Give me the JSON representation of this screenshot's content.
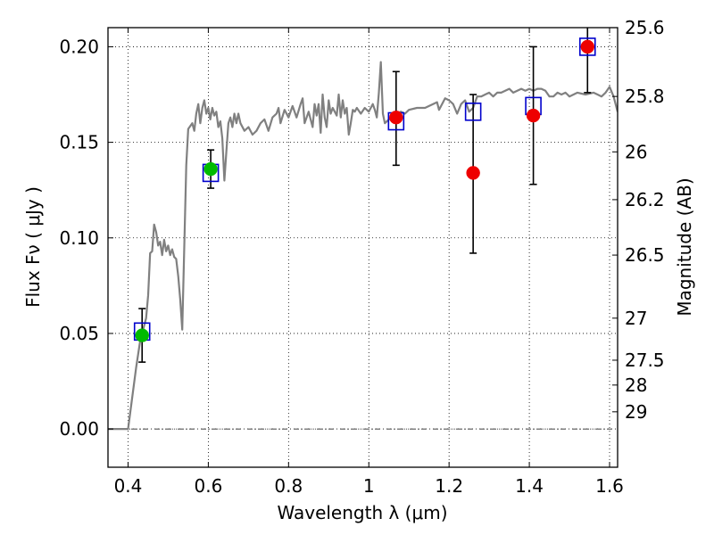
{
  "chart_data": {
    "type": "scatter",
    "xlabel": "Wavelength  λ (μm)",
    "ylabel": "Flux  Fν  ( μJy )",
    "ylabel_right": "Magnitude (AB)",
    "xlim": [
      0.35,
      1.62
    ],
    "ylim": [
      -0.02,
      0.21
    ],
    "x_ticks": [
      0.4,
      0.6,
      0.8,
      1.0,
      1.2,
      1.4,
      1.6
    ],
    "x_tick_labels": [
      "0.4",
      "0.6",
      "0.8",
      "1",
      "1.2",
      "1.4",
      "1.6"
    ],
    "y_ticks": [
      0.0,
      0.05,
      0.1,
      0.15,
      0.2
    ],
    "y_tick_labels": [
      "0.00",
      "0.05",
      "0.10",
      "0.15",
      "0.20"
    ],
    "right_ticks": [
      {
        "label": "25.6",
        "flux": 0.21
      },
      {
        "label": "25.8",
        "flux": 0.174
      },
      {
        "label": "26",
        "flux": 0.145
      },
      {
        "label": "26.2",
        "flux": 0.12
      },
      {
        "label": "26.5",
        "flux": 0.091
      },
      {
        "label": "27",
        "flux": 0.058
      },
      {
        "label": "27.5",
        "flux": 0.036
      },
      {
        "label": "28",
        "flux": 0.023
      },
      {
        "label": "29",
        "flux": 0.009
      }
    ],
    "grid": true,
    "colors": {
      "model": "#808080",
      "box": "#0000cc",
      "green": "#00bb00",
      "red": "#ee0000",
      "errorbar": "#000000"
    },
    "series": [
      {
        "kind": "line",
        "points": [
          [
            0.35,
            0.0
          ],
          [
            0.4,
            0.0
          ],
          [
            0.41,
            0.016
          ],
          [
            0.42,
            0.032
          ],
          [
            0.43,
            0.046
          ],
          [
            0.44,
            0.054
          ],
          [
            0.445,
            0.058
          ],
          [
            0.45,
            0.07
          ],
          [
            0.455,
            0.092
          ],
          [
            0.46,
            0.093
          ],
          [
            0.465,
            0.107
          ],
          [
            0.47,
            0.103
          ],
          [
            0.475,
            0.096
          ],
          [
            0.48,
            0.098
          ],
          [
            0.485,
            0.091
          ],
          [
            0.49,
            0.099
          ],
          [
            0.495,
            0.093
          ],
          [
            0.5,
            0.096
          ],
          [
            0.505,
            0.091
          ],
          [
            0.51,
            0.094
          ],
          [
            0.515,
            0.09
          ],
          [
            0.52,
            0.089
          ],
          [
            0.525,
            0.08
          ],
          [
            0.53,
            0.068
          ],
          [
            0.535,
            0.052
          ],
          [
            0.54,
            0.094
          ],
          [
            0.545,
            0.138
          ],
          [
            0.55,
            0.157
          ],
          [
            0.56,
            0.16
          ],
          [
            0.565,
            0.156
          ],
          [
            0.57,
            0.165
          ],
          [
            0.575,
            0.17
          ],
          [
            0.58,
            0.16
          ],
          [
            0.585,
            0.168
          ],
          [
            0.59,
            0.172
          ],
          [
            0.595,
            0.165
          ],
          [
            0.6,
            0.168
          ],
          [
            0.605,
            0.162
          ],
          [
            0.61,
            0.168
          ],
          [
            0.615,
            0.164
          ],
          [
            0.62,
            0.166
          ],
          [
            0.625,
            0.158
          ],
          [
            0.63,
            0.161
          ],
          [
            0.635,
            0.152
          ],
          [
            0.64,
            0.13
          ],
          [
            0.645,
            0.145
          ],
          [
            0.65,
            0.16
          ],
          [
            0.655,
            0.163
          ],
          [
            0.66,
            0.158
          ],
          [
            0.665,
            0.165
          ],
          [
            0.67,
            0.16
          ],
          [
            0.675,
            0.165
          ],
          [
            0.68,
            0.16
          ],
          [
            0.69,
            0.156
          ],
          [
            0.7,
            0.158
          ],
          [
            0.71,
            0.154
          ],
          [
            0.72,
            0.156
          ],
          [
            0.73,
            0.16
          ],
          [
            0.74,
            0.162
          ],
          [
            0.75,
            0.156
          ],
          [
            0.76,
            0.163
          ],
          [
            0.77,
            0.165
          ],
          [
            0.775,
            0.168
          ],
          [
            0.78,
            0.16
          ],
          [
            0.79,
            0.167
          ],
          [
            0.8,
            0.163
          ],
          [
            0.81,
            0.169
          ],
          [
            0.82,
            0.163
          ],
          [
            0.83,
            0.17
          ],
          [
            0.835,
            0.173
          ],
          [
            0.84,
            0.16
          ],
          [
            0.85,
            0.166
          ],
          [
            0.86,
            0.158
          ],
          [
            0.865,
            0.17
          ],
          [
            0.87,
            0.164
          ],
          [
            0.875,
            0.17
          ],
          [
            0.88,
            0.155
          ],
          [
            0.885,
            0.175
          ],
          [
            0.89,
            0.163
          ],
          [
            0.895,
            0.158
          ],
          [
            0.9,
            0.172
          ],
          [
            0.905,
            0.165
          ],
          [
            0.91,
            0.168
          ],
          [
            0.92,
            0.164
          ],
          [
            0.925,
            0.175
          ],
          [
            0.93,
            0.163
          ],
          [
            0.935,
            0.172
          ],
          [
            0.94,
            0.165
          ],
          [
            0.945,
            0.168
          ],
          [
            0.95,
            0.154
          ],
          [
            0.955,
            0.16
          ],
          [
            0.96,
            0.167
          ],
          [
            0.965,
            0.166
          ],
          [
            0.97,
            0.168
          ],
          [
            0.98,
            0.165
          ],
          [
            0.99,
            0.168
          ],
          [
            1.0,
            0.166
          ],
          [
            1.01,
            0.17
          ],
          [
            1.015,
            0.167
          ],
          [
            1.02,
            0.163
          ],
          [
            1.025,
            0.176
          ],
          [
            1.03,
            0.192
          ],
          [
            1.035,
            0.165
          ],
          [
            1.04,
            0.16
          ],
          [
            1.05,
            0.162
          ],
          [
            1.06,
            0.164
          ],
          [
            1.07,
            0.165
          ],
          [
            1.08,
            0.166
          ],
          [
            1.09,
            0.165
          ],
          [
            1.1,
            0.167
          ],
          [
            1.12,
            0.168
          ],
          [
            1.14,
            0.168
          ],
          [
            1.16,
            0.17
          ],
          [
            1.17,
            0.171
          ],
          [
            1.175,
            0.167
          ],
          [
            1.18,
            0.169
          ],
          [
            1.19,
            0.173
          ],
          [
            1.2,
            0.172
          ],
          [
            1.21,
            0.17
          ],
          [
            1.22,
            0.165
          ],
          [
            1.23,
            0.17
          ],
          [
            1.24,
            0.172
          ],
          [
            1.25,
            0.166
          ],
          [
            1.26,
            0.168
          ],
          [
            1.27,
            0.174
          ],
          [
            1.28,
            0.174
          ],
          [
            1.29,
            0.175
          ],
          [
            1.3,
            0.176
          ],
          [
            1.31,
            0.174
          ],
          [
            1.32,
            0.176
          ],
          [
            1.33,
            0.176
          ],
          [
            1.34,
            0.177
          ],
          [
            1.35,
            0.178
          ],
          [
            1.36,
            0.176
          ],
          [
            1.37,
            0.177
          ],
          [
            1.38,
            0.178
          ],
          [
            1.39,
            0.177
          ],
          [
            1.4,
            0.178
          ],
          [
            1.41,
            0.177
          ],
          [
            1.42,
            0.178
          ],
          [
            1.43,
            0.178
          ],
          [
            1.44,
            0.177
          ],
          [
            1.45,
            0.174
          ],
          [
            1.46,
            0.174
          ],
          [
            1.47,
            0.176
          ],
          [
            1.48,
            0.175
          ],
          [
            1.49,
            0.176
          ],
          [
            1.5,
            0.174
          ],
          [
            1.52,
            0.176
          ],
          [
            1.54,
            0.175
          ],
          [
            1.56,
            0.176
          ],
          [
            1.57,
            0.175
          ],
          [
            1.58,
            0.174
          ],
          [
            1.59,
            0.176
          ],
          [
            1.6,
            0.179
          ],
          [
            1.61,
            0.174
          ],
          [
            1.62,
            0.166
          ]
        ]
      },
      {
        "kind": "boxes",
        "points": [
          [
            0.435,
            0.051
          ],
          [
            0.606,
            0.134
          ],
          [
            1.068,
            0.161
          ],
          [
            1.26,
            0.166
          ],
          [
            1.41,
            0.169
          ],
          [
            1.545,
            0.2
          ]
        ]
      },
      {
        "kind": "points",
        "color": "green",
        "points": [
          [
            0.435,
            0.049
          ],
          [
            0.606,
            0.136
          ]
        ]
      },
      {
        "kind": "points",
        "color": "red",
        "points": [
          [
            1.068,
            0.163
          ],
          [
            1.26,
            0.134
          ],
          [
            1.41,
            0.164
          ],
          [
            1.545,
            0.2
          ]
        ]
      },
      {
        "kind": "errorbars",
        "points": [
          [
            0.435,
            0.035,
            0.063
          ],
          [
            0.606,
            0.126,
            0.146
          ],
          [
            1.068,
            0.138,
            0.187
          ],
          [
            1.26,
            0.092,
            0.175
          ],
          [
            1.41,
            0.128,
            0.2
          ],
          [
            1.545,
            0.176,
            0.215
          ]
        ]
      }
    ]
  }
}
